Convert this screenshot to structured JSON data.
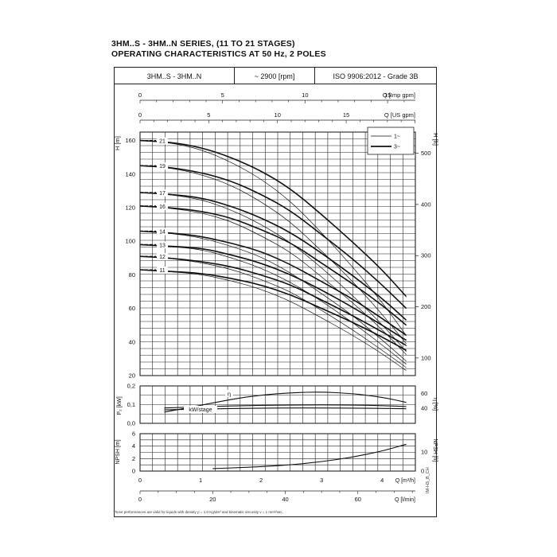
{
  "title_line1": "3HM..S - 3HM..N SERIES, (11 TO 21 STAGES)",
  "title_line2": "OPERATING CHARACTERISTICS AT 50 Hz, 2 POLES",
  "header": {
    "model": "3HM..S - 3HM..N",
    "speed": "~ 2900 [rpm]",
    "standard": "ISO 9906:2012 - Grade 3B"
  },
  "footnote": "These performances are valid for liquids with density ρ = 1.0 Kg/dm³ and kinematic viscosity ν = 1 mm²/sec.",
  "code": "IM-H3_B_CH",
  "chart_data": [
    {
      "type": "line",
      "name": "head",
      "xlabel": "Q [m³/h]",
      "ylabel": "H [m]",
      "y2label": "H [ft]",
      "xlim": [
        0,
        4.55
      ],
      "ylim": [
        20,
        165
      ],
      "yticks": [
        20,
        40,
        60,
        80,
        100,
        120,
        140,
        160
      ],
      "y2ticks": [
        100,
        200,
        300,
        400,
        500
      ],
      "top_axis_imp": {
        "label": "Q [Imp gpm]",
        "ticks": [
          0,
          5,
          10,
          15
        ]
      },
      "top_axis_us": {
        "label": "Q [US gpm]",
        "ticks": [
          0,
          5,
          10,
          15
        ]
      },
      "legend": {
        "position": "top-right",
        "entries": [
          "1~",
          "3~"
        ]
      },
      "series": [
        {
          "name": "21",
          "x": [
            0,
            0.5,
            1,
            1.5,
            2,
            2.5,
            3,
            3.5,
            4,
            4.4
          ],
          "y": [
            160,
            159,
            156,
            150,
            142,
            131,
            116,
            100,
            83,
            67
          ]
        },
        {
          "name": "19",
          "x": [
            0,
            0.5,
            1,
            1.5,
            2,
            2.5,
            3,
            3.5,
            4,
            4.4
          ],
          "y": [
            145,
            144,
            141,
            136,
            128,
            118,
            104,
            90,
            74,
            60
          ]
        },
        {
          "name": "17",
          "x": [
            0,
            0.5,
            1,
            1.5,
            2,
            2.5,
            3,
            3.5,
            4,
            4.4
          ],
          "y": [
            129,
            128,
            126,
            121,
            114,
            105,
            93,
            80,
            66,
            53
          ]
        },
        {
          "name": "16",
          "x": [
            0,
            0.5,
            1,
            1.5,
            2,
            2.5,
            3,
            3.5,
            4,
            4.4
          ],
          "y": [
            121,
            120,
            118,
            114,
            107,
            99,
            87,
            75,
            62,
            50
          ]
        },
        {
          "name": "14",
          "x": [
            0,
            0.5,
            1,
            1.5,
            2,
            2.5,
            3,
            3.5,
            4,
            4.4
          ],
          "y": [
            106,
            105,
            103,
            99,
            94,
            86,
            76,
            66,
            54,
            44
          ]
        },
        {
          "name": "13",
          "x": [
            0,
            0.5,
            1,
            1.5,
            2,
            2.5,
            3,
            3.5,
            4,
            4.4
          ],
          "y": [
            98,
            97,
            96,
            92,
            87,
            80,
            71,
            61,
            50,
            41
          ]
        },
        {
          "name": "12",
          "x": [
            0,
            0.5,
            1,
            1.5,
            2,
            2.5,
            3,
            3.5,
            4,
            4.4
          ],
          "y": [
            91,
            90,
            88,
            85,
            80,
            74,
            65,
            56,
            46,
            38
          ]
        },
        {
          "name": "11",
          "x": [
            0,
            0.5,
            1,
            1.5,
            2,
            2.5,
            3,
            3.5,
            4,
            4.4
          ],
          "y": [
            83,
            82,
            81,
            78,
            74,
            68,
            60,
            52,
            43,
            35
          ]
        }
      ]
    },
    {
      "type": "line",
      "name": "power-efficiency",
      "ylabel": "P₂ [kW]",
      "y2label": "η [%]",
      "ylim": [
        0,
        0.2
      ],
      "yticks": [
        0.0,
        0.1,
        0.2
      ],
      "y2ticks": [
        40,
        60
      ],
      "labels": [
        "η",
        "kW/stage"
      ],
      "series": [
        {
          "name": "η",
          "x": [
            0.4,
            1,
            1.5,
            2,
            2.5,
            3,
            3.5,
            4,
            4.4
          ],
          "y": [
            35,
            44,
            52,
            58,
            61,
            62,
            60,
            55,
            48
          ]
        },
        {
          "name": "kW/stage 1",
          "x": [
            0.4,
            1,
            1.5,
            2,
            2.5,
            3,
            3.5,
            4,
            4.4
          ],
          "y": [
            0.082,
            0.088,
            0.093,
            0.096,
            0.098,
            0.099,
            0.098,
            0.095,
            0.09
          ]
        },
        {
          "name": "kW/stage 2",
          "x": [
            0.4,
            1,
            1.5,
            2,
            2.5,
            3,
            3.5,
            4,
            4.4
          ],
          "y": [
            0.072,
            0.076,
            0.079,
            0.081,
            0.082,
            0.082,
            0.081,
            0.08,
            0.078
          ]
        }
      ]
    },
    {
      "type": "line",
      "name": "npsh",
      "ylabel": "NPSH [m]",
      "y2label": "NPSH [ft]",
      "ylim": [
        0,
        6
      ],
      "yticks": [
        0,
        2,
        4,
        6
      ],
      "y2ticks": [
        0,
        10
      ],
      "xticks": [
        0,
        1,
        2,
        3,
        4
      ],
      "xlabel": "Q [m³/h]",
      "x2label": "Q [l/min]",
      "x2ticks": [
        0,
        20,
        40,
        60
      ],
      "series": [
        {
          "name": "NPSH",
          "x": [
            1.2,
            1.5,
            2,
            2.5,
            3,
            3.5,
            4,
            4.4
          ],
          "y": [
            0.4,
            0.5,
            0.7,
            1.0,
            1.5,
            2.2,
            3.2,
            4.3
          ]
        }
      ]
    }
  ]
}
